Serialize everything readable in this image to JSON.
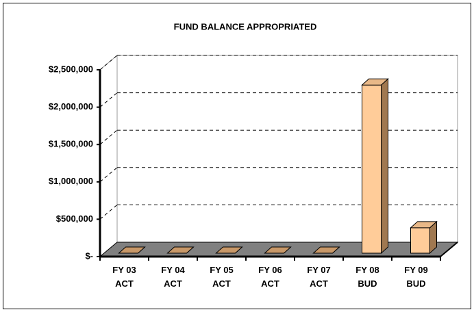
{
  "chart_data": {
    "type": "bar3d",
    "title": "FUND BALANCE APPROPRIATED",
    "categories": [
      "FY 03\nACT",
      "FY 04\nACT",
      "FY 05\nACT",
      "FY 06\nACT",
      "FY 07\nACT",
      "FY 08\nBUD",
      "FY 09\nBUD"
    ],
    "values": [
      0,
      0,
      0,
      0,
      0,
      2250000,
      340000
    ],
    "color": "#ffcc99",
    "ylim": [
      0,
      2500000
    ],
    "yticks": [
      {
        "value": 0,
        "label": "$-"
      },
      {
        "value": 500000,
        "label": "$500,000"
      },
      {
        "value": 1000000,
        "label": "$1,000,000"
      },
      {
        "value": 1500000,
        "label": "$1,500,000"
      },
      {
        "value": 2000000,
        "label": "$2,000,000"
      },
      {
        "value": 2500000,
        "label": "$2,500,000"
      }
    ],
    "grid": true
  }
}
